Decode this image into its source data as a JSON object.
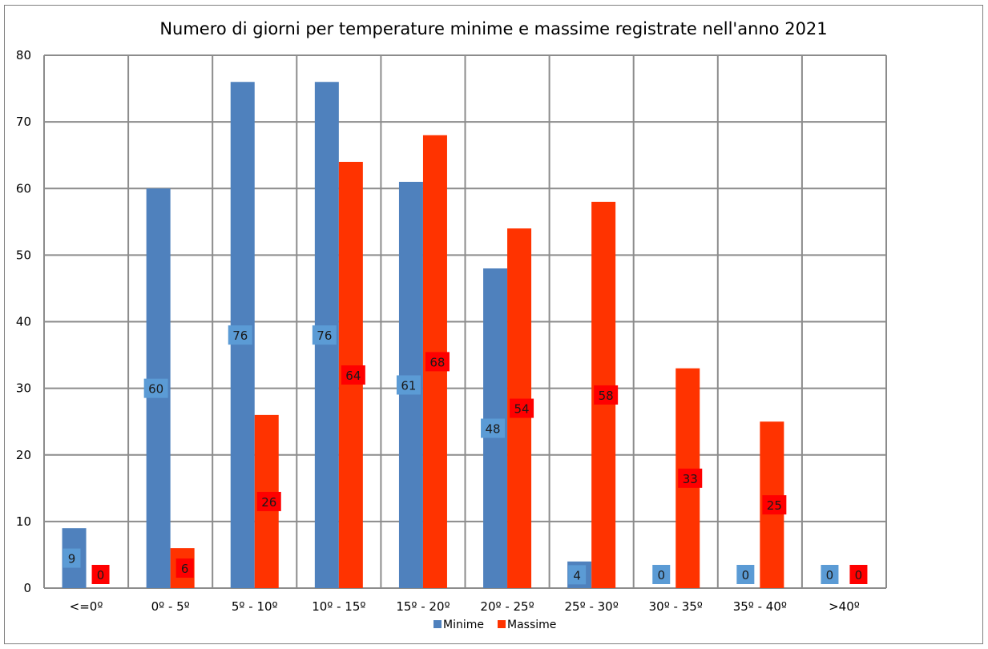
{
  "chart_data": {
    "type": "bar",
    "title": "Numero di giorni per temperature minime e massime registrate nell'anno 2021",
    "categories": [
      "<=0º",
      "0º - 5º",
      "5º - 10º",
      "10º - 15º",
      "15º - 20º",
      "20º - 25º",
      "25º - 30º",
      "30º - 35º",
      "35º - 40º",
      ">40º"
    ],
    "series": [
      {
        "name": "Minime",
        "color": "#4f81bd",
        "label_bg": "#5b9bd5",
        "values": [
          9,
          60,
          76,
          76,
          61,
          48,
          4,
          0,
          0,
          0
        ]
      },
      {
        "name": "Massime",
        "color": "#ff3300",
        "label_bg": "#ff0000",
        "values": [
          0,
          6,
          26,
          64,
          68,
          54,
          58,
          33,
          25,
          0
        ]
      }
    ],
    "ylim": [
      0,
      80
    ],
    "yticks": [
      0,
      10,
      20,
      30,
      40,
      50,
      60,
      70,
      80
    ],
    "grid": true,
    "legend_position": "bottom",
    "xlabel": "",
    "ylabel": ""
  }
}
